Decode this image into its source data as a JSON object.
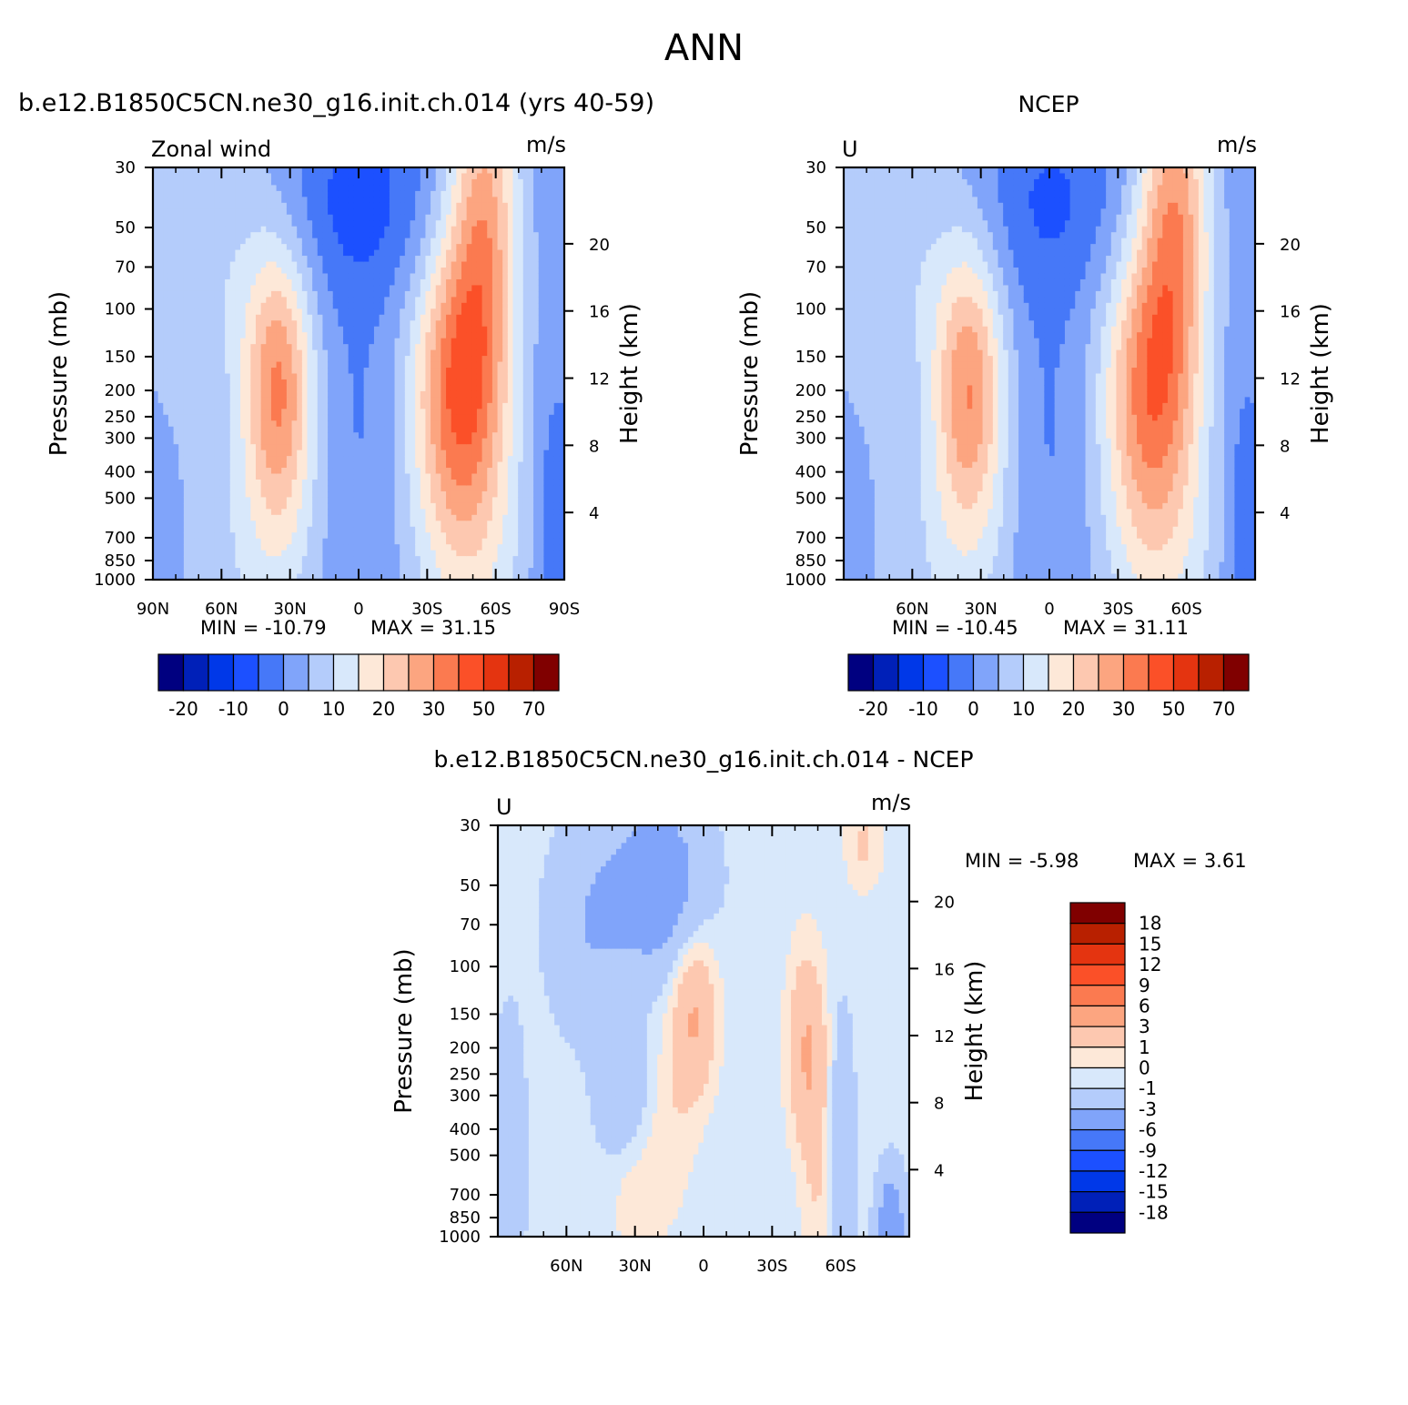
{
  "figure": {
    "main_title": "ANN",
    "left_title": "b.e12.B1850C5CN.ne30_g16.init.ch.014 (yrs 40-59)",
    "right_title": "NCEP",
    "diff_title": "b.e12.B1850C5CN.ne30_g16.init.ch.014 - NCEP"
  },
  "colors": {
    "main_scale": [
      "#000080",
      "#0020b8",
      "#0038e8",
      "#1c50ff",
      "#4678f8",
      "#80a4fa",
      "#b4ccfb",
      "#d8e8fb",
      "#fde8d8",
      "#fdc8b0",
      "#fca580",
      "#fb7a50",
      "#fb5028",
      "#e43410",
      "#b82000",
      "#800000"
    ],
    "diff_scale": [
      "#000080",
      "#0020b8",
      "#0038e8",
      "#1c50ff",
      "#4678f8",
      "#80a4fa",
      "#b4ccfb",
      "#d8e8fb",
      "#fde8d8",
      "#fdc8b0",
      "#fca580",
      "#fb7a50",
      "#fb5028",
      "#e43410",
      "#b82000",
      "#800000"
    ]
  },
  "chart_data": [
    {
      "type": "heatmap",
      "panel": "model",
      "title_left": "Zonal wind",
      "title_right": "m/s",
      "ylabel": "Pressure (mb)",
      "ylabel_right": "Height (km)",
      "x_tick_labels": [
        "90N",
        "60N",
        "30N",
        "0",
        "30S",
        "60S",
        "90S"
      ],
      "x_ticks": [
        90,
        60,
        30,
        0,
        -30,
        -60,
        -90
      ],
      "xlim": [
        90,
        -90
      ],
      "y_tick_labels": [
        "30",
        "50",
        "70",
        "100",
        "150",
        "200",
        "250",
        "300",
        "400",
        "500",
        "700",
        "850",
        "1000"
      ],
      "y_ticks": [
        30,
        50,
        70,
        100,
        150,
        200,
        250,
        300,
        400,
        500,
        700,
        850,
        1000
      ],
      "ylim": [
        1000,
        30
      ],
      "y_scale": "log",
      "height_ticks": [
        20,
        16,
        12,
        8,
        4
      ],
      "min_label": "MIN = -10.79",
      "max_label": "MAX = 31.15",
      "min": -10.79,
      "max": 31.15,
      "levels": [
        -25,
        -20,
        -15,
        -10,
        -5,
        0,
        5,
        10,
        15,
        20,
        25,
        30,
        40,
        50,
        60,
        70
      ],
      "colorbar_labels": [
        "-20",
        "-10",
        "0",
        "10",
        "20",
        "30",
        "50",
        "70"
      ],
      "features": [
        {
          "lat": -45,
          "p": 200,
          "value": 31.15
        },
        {
          "lat": 35,
          "p": 200,
          "value": 23
        },
        {
          "lat": 0,
          "p": 40,
          "value": -10.79
        },
        {
          "lat": 0,
          "p": 500,
          "value": -5
        }
      ]
    },
    {
      "type": "heatmap",
      "panel": "obs",
      "title_left": "U",
      "title_right": "m/s",
      "ylabel": "Pressure (mb)",
      "ylabel_right": "Height (km)",
      "x_tick_labels": [
        "60N",
        "30N",
        "0",
        "30S",
        "60S"
      ],
      "x_ticks": [
        60,
        30,
        0,
        -30,
        -60
      ],
      "xlim": [
        90,
        -90
      ],
      "y_tick_labels": [
        "30",
        "50",
        "70",
        "100",
        "150",
        "200",
        "250",
        "300",
        "400",
        "500",
        "700",
        "850",
        "1000"
      ],
      "y_ticks": [
        30,
        50,
        70,
        100,
        150,
        200,
        250,
        300,
        400,
        500,
        700,
        850,
        1000
      ],
      "ylim": [
        1000,
        30
      ],
      "y_scale": "log",
      "height_ticks": [
        20,
        16,
        12,
        8,
        4
      ],
      "min_label": "MIN = -10.45",
      "max_label": "MAX = 31.11",
      "min": -10.45,
      "max": 31.11,
      "levels": [
        -25,
        -20,
        -15,
        -10,
        -5,
        0,
        5,
        10,
        15,
        20,
        25,
        30,
        40,
        50,
        60,
        70
      ],
      "colorbar_labels": [
        "-20",
        "-10",
        "0",
        "10",
        "20",
        "30",
        "50",
        "70"
      ]
    },
    {
      "type": "heatmap",
      "panel": "diff",
      "title_left": "U",
      "title_right": "m/s",
      "ylabel": "Pressure (mb)",
      "ylabel_right": "Height (km)",
      "x_tick_labels": [
        "60N",
        "30N",
        "0",
        "30S",
        "60S"
      ],
      "x_ticks": [
        60,
        30,
        0,
        -30,
        -60
      ],
      "xlim": [
        90,
        -90
      ],
      "y_tick_labels": [
        "30",
        "50",
        "70",
        "100",
        "150",
        "200",
        "250",
        "300",
        "400",
        "500",
        "700",
        "850",
        "1000"
      ],
      "y_ticks": [
        30,
        50,
        70,
        100,
        150,
        200,
        250,
        300,
        400,
        500,
        700,
        850,
        1000
      ],
      "ylim": [
        1000,
        30
      ],
      "y_scale": "log",
      "height_ticks": [
        20,
        16,
        12,
        8,
        4
      ],
      "min_label": "MIN = -5.98",
      "max_label": "MAX = 3.61",
      "min": -5.98,
      "max": 3.61,
      "levels": [
        -18,
        -15,
        -12,
        -9,
        -6,
        -3,
        -1,
        0,
        1,
        3,
        6,
        9,
        12,
        15,
        18
      ],
      "colorbar_labels": [
        "18",
        "15",
        "12",
        "9",
        "6",
        "3",
        "1",
        "0",
        "-1",
        "-3",
        "-6",
        "-9",
        "-12",
        "-15",
        "-18"
      ]
    }
  ]
}
